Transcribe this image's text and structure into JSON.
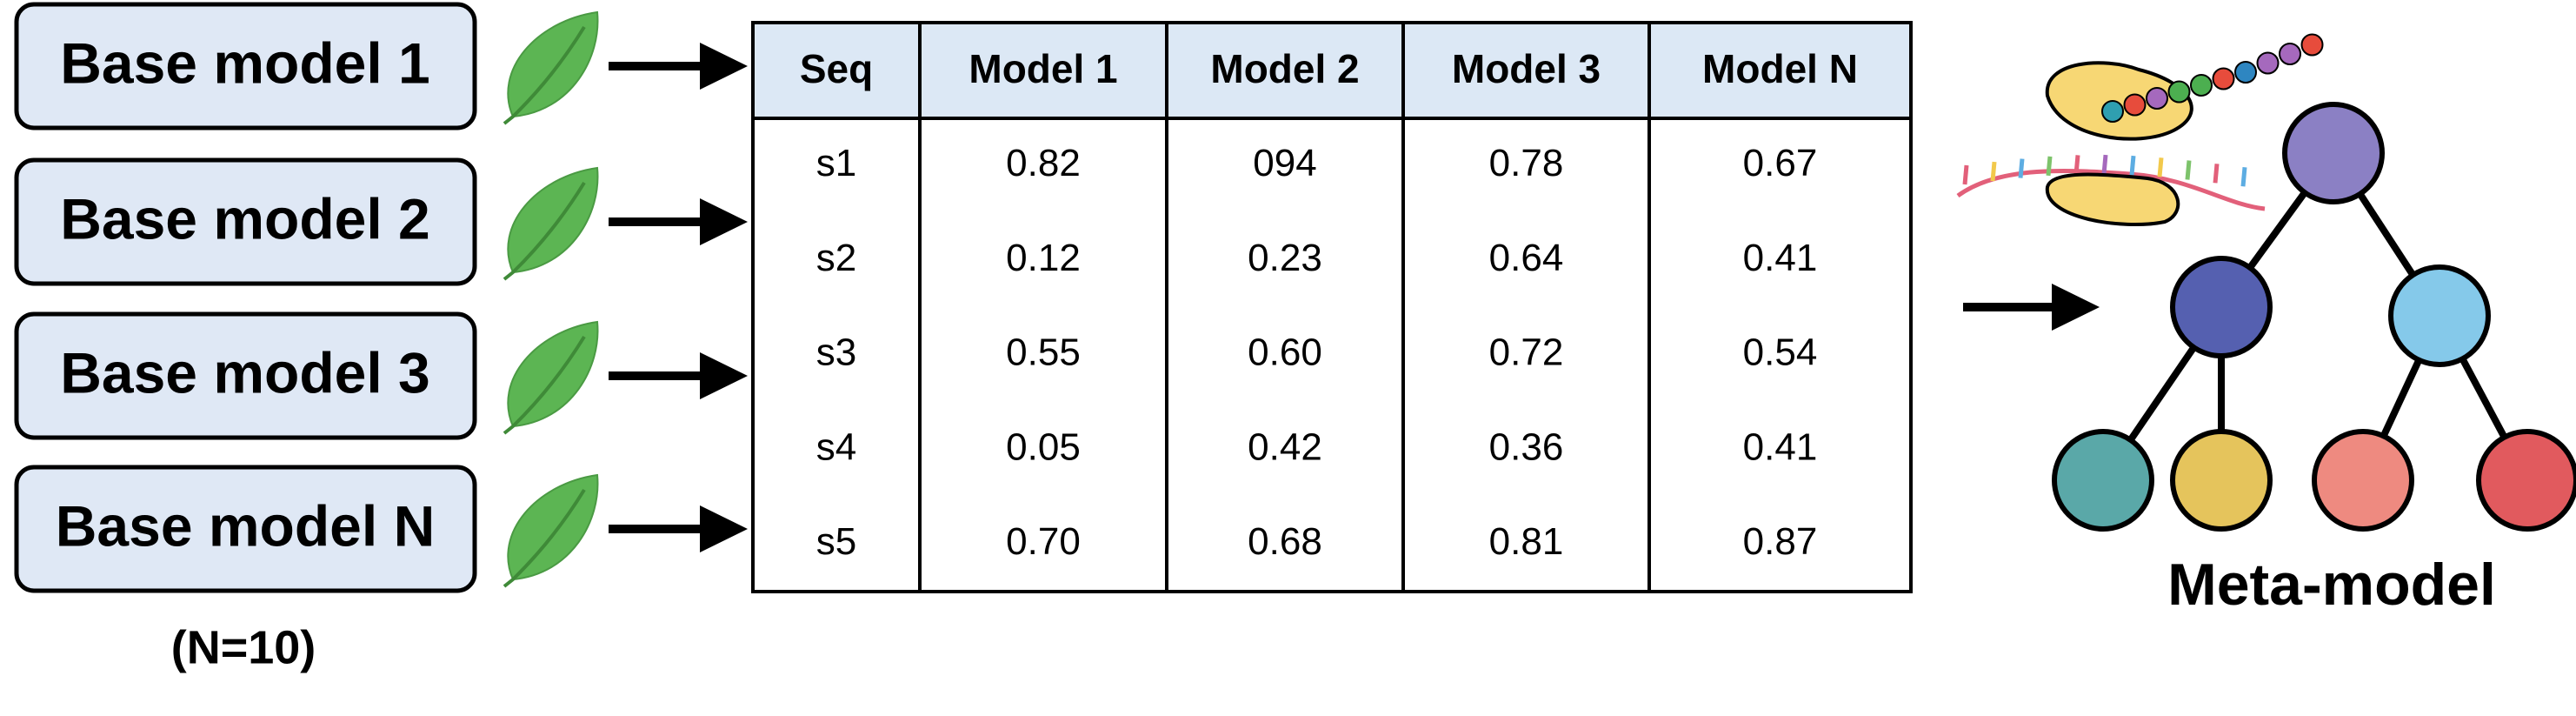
{
  "base_models": [
    "Base model 1",
    "Base model 2",
    "Base model 3",
    "Base model N"
  ],
  "note": "(N=10)",
  "table": {
    "header": [
      "Seq",
      "Model 1",
      "Model 2",
      "Model 3",
      "Model N"
    ],
    "rows": [
      [
        "s1",
        "0.82",
        "094",
        "0.78",
        "0.67"
      ],
      [
        "s2",
        "0.12",
        "0.23",
        "0.64",
        "0.41"
      ],
      [
        "s3",
        "0.55",
        "0.60",
        "0.72",
        "0.54"
      ],
      [
        "s4",
        "0.05",
        "0.42",
        "0.36",
        "0.41"
      ],
      [
        "s5",
        "0.70",
        "0.68",
        "0.81",
        "0.87"
      ]
    ]
  },
  "meta_model_label": "Meta-model"
}
